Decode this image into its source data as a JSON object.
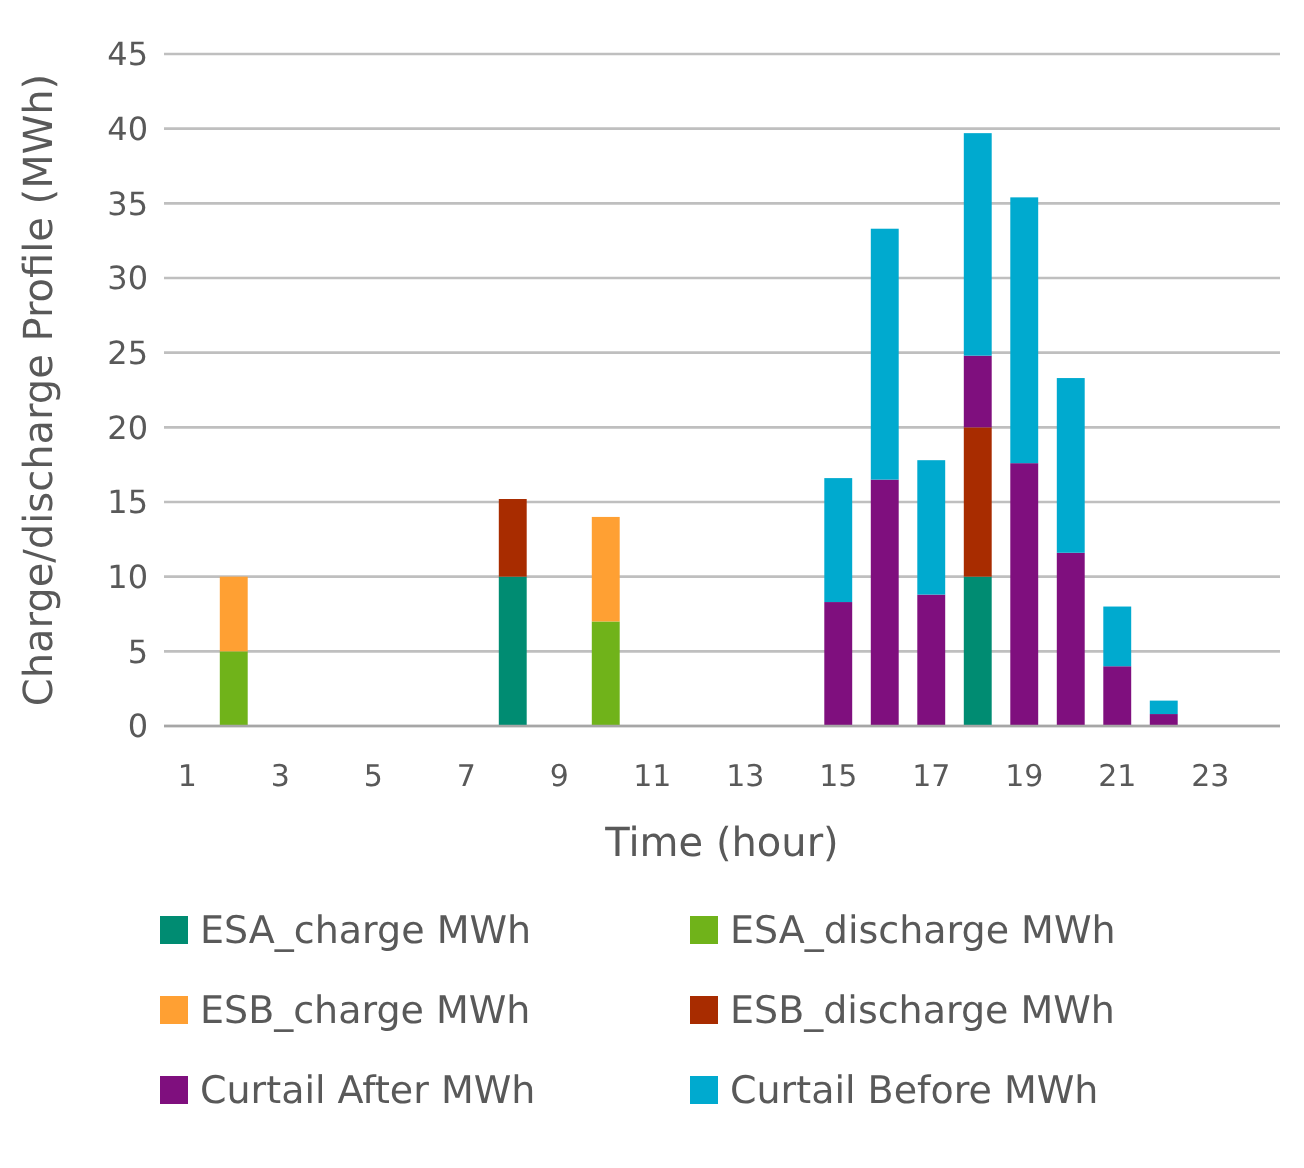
{
  "chart_data": {
    "type": "bar",
    "stacked": true,
    "xlabel": "Time (hour)",
    "ylabel": "Charge/discharge Profile (MWh)",
    "x": [
      1,
      2,
      3,
      4,
      5,
      6,
      7,
      8,
      9,
      10,
      11,
      12,
      13,
      14,
      15,
      16,
      17,
      18,
      19,
      20,
      21,
      22,
      23,
      24
    ],
    "xlim": [
      0.5,
      24.5
    ],
    "xticks": [
      1,
      3,
      5,
      7,
      9,
      11,
      13,
      15,
      17,
      19,
      21,
      23
    ],
    "series": [
      {
        "name": "ESA_charge MWh",
        "color": "#008c72",
        "values": [
          0,
          0,
          0,
          0,
          0,
          0,
          0,
          10,
          0,
          0,
          0,
          0,
          0,
          0,
          0,
          0,
          0,
          10,
          0,
          0,
          0,
          0,
          0,
          0
        ]
      },
      {
        "name": "ESA_discharge MWh",
        "color": "#70b31a",
        "values": [
          0,
          5,
          0,
          0,
          0,
          0,
          0,
          0,
          0,
          7,
          0,
          0,
          0,
          0,
          0,
          0,
          0,
          0,
          0,
          0,
          0,
          0,
          0,
          0
        ]
      },
      {
        "name": "ESB_charge MWh",
        "color": "#ffa033",
        "values": [
          0,
          5,
          0,
          0,
          0,
          0,
          0,
          0,
          0,
          7,
          0,
          0,
          0,
          0,
          0,
          0,
          0,
          0,
          0,
          0,
          0,
          0,
          0,
          0
        ]
      },
      {
        "name": "ESB_discharge MWh",
        "color": "#a82c00",
        "values": [
          0,
          0,
          0,
          0,
          0,
          0,
          0,
          5.2,
          0,
          0,
          0,
          0,
          0,
          0,
          0,
          0,
          0,
          10,
          0,
          0,
          0,
          0,
          0,
          0
        ]
      },
      {
        "name": "Curtail After MWh",
        "color": "#7f0f7e",
        "values": [
          0,
          0,
          0,
          0,
          0,
          0,
          0,
          0,
          0,
          0,
          0,
          0,
          0,
          0,
          8.3,
          16.5,
          8.8,
          4.8,
          17.6,
          11.6,
          4,
          0.8,
          0,
          0
        ]
      },
      {
        "name": "Curtail Before MWh",
        "color": "#00aacf",
        "values": [
          0,
          0,
          0,
          0,
          0,
          0,
          0,
          0,
          0,
          0,
          0,
          0,
          0,
          0,
          8.3,
          16.8,
          9,
          14.9,
          17.8,
          11.7,
          4,
          0.9,
          0,
          0
        ]
      }
    ],
    "ylim": [
      0,
      45
    ],
    "yticks": [
      0,
      5,
      10,
      15,
      20,
      25,
      30,
      35,
      40,
      45
    ],
    "grid": "y",
    "legend": "bottom"
  }
}
